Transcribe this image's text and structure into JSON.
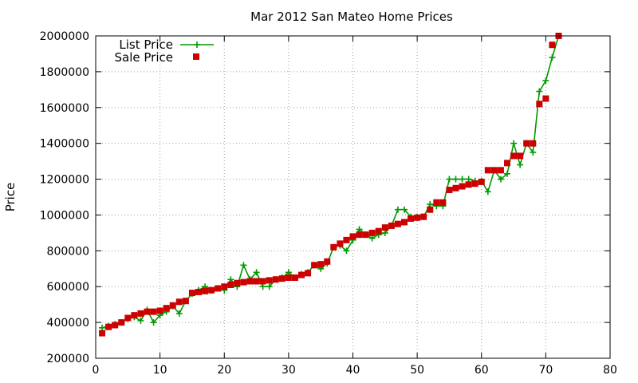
{
  "chart_data": {
    "type": "scatter",
    "title": "Mar 2012 San Mateo Home Prices",
    "xlabel": "",
    "ylabel": "Price",
    "xlim": [
      0,
      80
    ],
    "ylim": [
      200000,
      2000000
    ],
    "xticks": [
      0,
      10,
      20,
      30,
      40,
      50,
      60,
      70,
      80
    ],
    "yticks": [
      200000,
      400000,
      600000,
      800000,
      1000000,
      1200000,
      1400000,
      1600000,
      1800000,
      2000000
    ],
    "grid": true,
    "legend_position": "top-left",
    "series": [
      {
        "name": "List Price",
        "style": "lines+crosses",
        "color": "#009900",
        "x": [
          1,
          2,
          3,
          4,
          5,
          6,
          7,
          8,
          9,
          10,
          11,
          12,
          13,
          14,
          15,
          16,
          17,
          18,
          19,
          20,
          21,
          22,
          23,
          24,
          25,
          26,
          27,
          28,
          29,
          30,
          31,
          32,
          33,
          34,
          35,
          36,
          37,
          38,
          39,
          40,
          41,
          42,
          43,
          44,
          45,
          46,
          47,
          48,
          49,
          50,
          51,
          52,
          53,
          54,
          55,
          56,
          57,
          58,
          59,
          60,
          61,
          62,
          63,
          64,
          65,
          66,
          67,
          68,
          69,
          70,
          71,
          72
        ],
        "y": [
          370000,
          380000,
          390000,
          400000,
          420000,
          430000,
          410000,
          470000,
          400000,
          440000,
          460000,
          490000,
          450000,
          520000,
          560000,
          580000,
          600000,
          580000,
          590000,
          580000,
          640000,
          600000,
          720000,
          640000,
          680000,
          600000,
          600000,
          640000,
          650000,
          680000,
          650000,
          670000,
          680000,
          720000,
          700000,
          730000,
          820000,
          830000,
          800000,
          860000,
          920000,
          890000,
          870000,
          890000,
          900000,
          940000,
          1030000,
          1030000,
          990000,
          990000,
          990000,
          1060000,
          1050000,
          1050000,
          1200000,
          1200000,
          1200000,
          1200000,
          1190000,
          1190000,
          1130000,
          1250000,
          1200000,
          1230000,
          1400000,
          1280000,
          1400000,
          1350000,
          1690000,
          1750000,
          1880000,
          2000000
        ]
      },
      {
        "name": "Sale Price",
        "style": "points",
        "color": "#cc0000",
        "x": [
          1,
          2,
          3,
          4,
          5,
          6,
          7,
          8,
          9,
          10,
          11,
          12,
          13,
          14,
          15,
          16,
          17,
          18,
          19,
          20,
          21,
          22,
          23,
          24,
          25,
          26,
          27,
          28,
          29,
          30,
          31,
          32,
          33,
          34,
          35,
          36,
          37,
          38,
          39,
          40,
          41,
          42,
          43,
          44,
          45,
          46,
          47,
          48,
          49,
          50,
          51,
          52,
          53,
          54,
          55,
          56,
          57,
          58,
          59,
          60,
          61,
          62,
          63,
          64,
          65,
          66,
          67,
          68,
          69,
          70,
          71,
          72
        ],
        "y": [
          340000,
          375000,
          385000,
          400000,
          425000,
          440000,
          450000,
          460000,
          460000,
          465000,
          480000,
          495000,
          515000,
          520000,
          565000,
          570000,
          575000,
          580000,
          590000,
          600000,
          610000,
          620000,
          625000,
          630000,
          630000,
          630000,
          635000,
          640000,
          645000,
          650000,
          650000,
          665000,
          675000,
          720000,
          725000,
          740000,
          820000,
          840000,
          860000,
          880000,
          890000,
          890000,
          900000,
          910000,
          930000,
          940000,
          950000,
          960000,
          980000,
          985000,
          990000,
          1030000,
          1070000,
          1070000,
          1140000,
          1150000,
          1160000,
          1170000,
          1175000,
          1185000,
          1250000,
          1250000,
          1250000,
          1290000,
          1330000,
          1330000,
          1400000,
          1400000,
          1620000,
          1650000,
          1950000,
          2000000
        ]
      }
    ]
  }
}
